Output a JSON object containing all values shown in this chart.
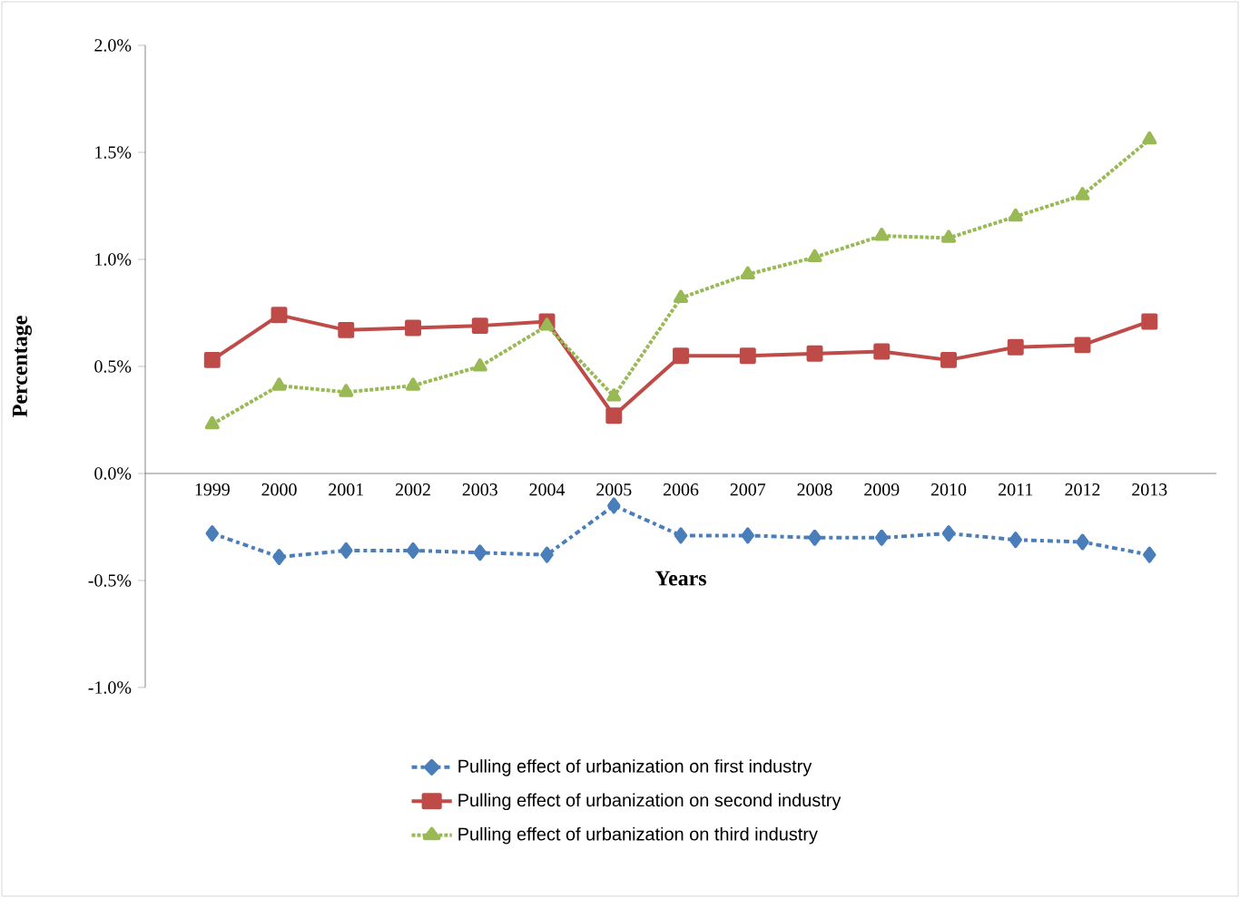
{
  "chart_data": {
    "type": "line",
    "xlabel": "Years",
    "ylabel": "Percentage",
    "categories": [
      "1999",
      "2000",
      "2001",
      "2002",
      "2003",
      "2004",
      "2005",
      "2006",
      "2007",
      "2008",
      "2009",
      "2010",
      "2011",
      "2012",
      "2013"
    ],
    "ylim": [
      -1.0,
      2.0
    ],
    "yticks": [
      {
        "value": -1.0,
        "label": "-1.0%"
      },
      {
        "value": -0.5,
        "label": "-0.5%"
      },
      {
        "value": 0.0,
        "label": "0.0%"
      },
      {
        "value": 0.5,
        "label": "0.5%"
      },
      {
        "value": 1.0,
        "label": "1.0%"
      },
      {
        "value": 1.5,
        "label": "1.5%"
      },
      {
        "value": 2.0,
        "label": "2.0%"
      }
    ],
    "legend": "bottom",
    "series": [
      {
        "name": "Pulling effect of urbanization on first industry",
        "color": "#4a7ebb",
        "marker": "diamond",
        "line_style": "dashed",
        "values": [
          -0.28,
          -0.39,
          -0.36,
          -0.36,
          -0.37,
          -0.38,
          -0.15,
          -0.29,
          -0.29,
          -0.3,
          -0.3,
          -0.28,
          -0.31,
          -0.32,
          -0.38
        ]
      },
      {
        "name": "Pulling effect of urbanization on second industry",
        "color": "#be4b48",
        "marker": "square",
        "line_style": "solid",
        "values": [
          0.53,
          0.74,
          0.67,
          0.68,
          0.69,
          0.71,
          0.27,
          0.55,
          0.55,
          0.56,
          0.57,
          0.53,
          0.59,
          0.6,
          0.71
        ]
      },
      {
        "name": "Pulling effect of urbanization on third industry",
        "color": "#98b954",
        "marker": "triangle",
        "line_style": "dotted",
        "values": [
          0.23,
          0.41,
          0.38,
          0.41,
          0.5,
          0.69,
          0.36,
          0.82,
          0.93,
          1.01,
          1.11,
          1.1,
          1.2,
          1.3,
          1.56
        ]
      }
    ]
  }
}
